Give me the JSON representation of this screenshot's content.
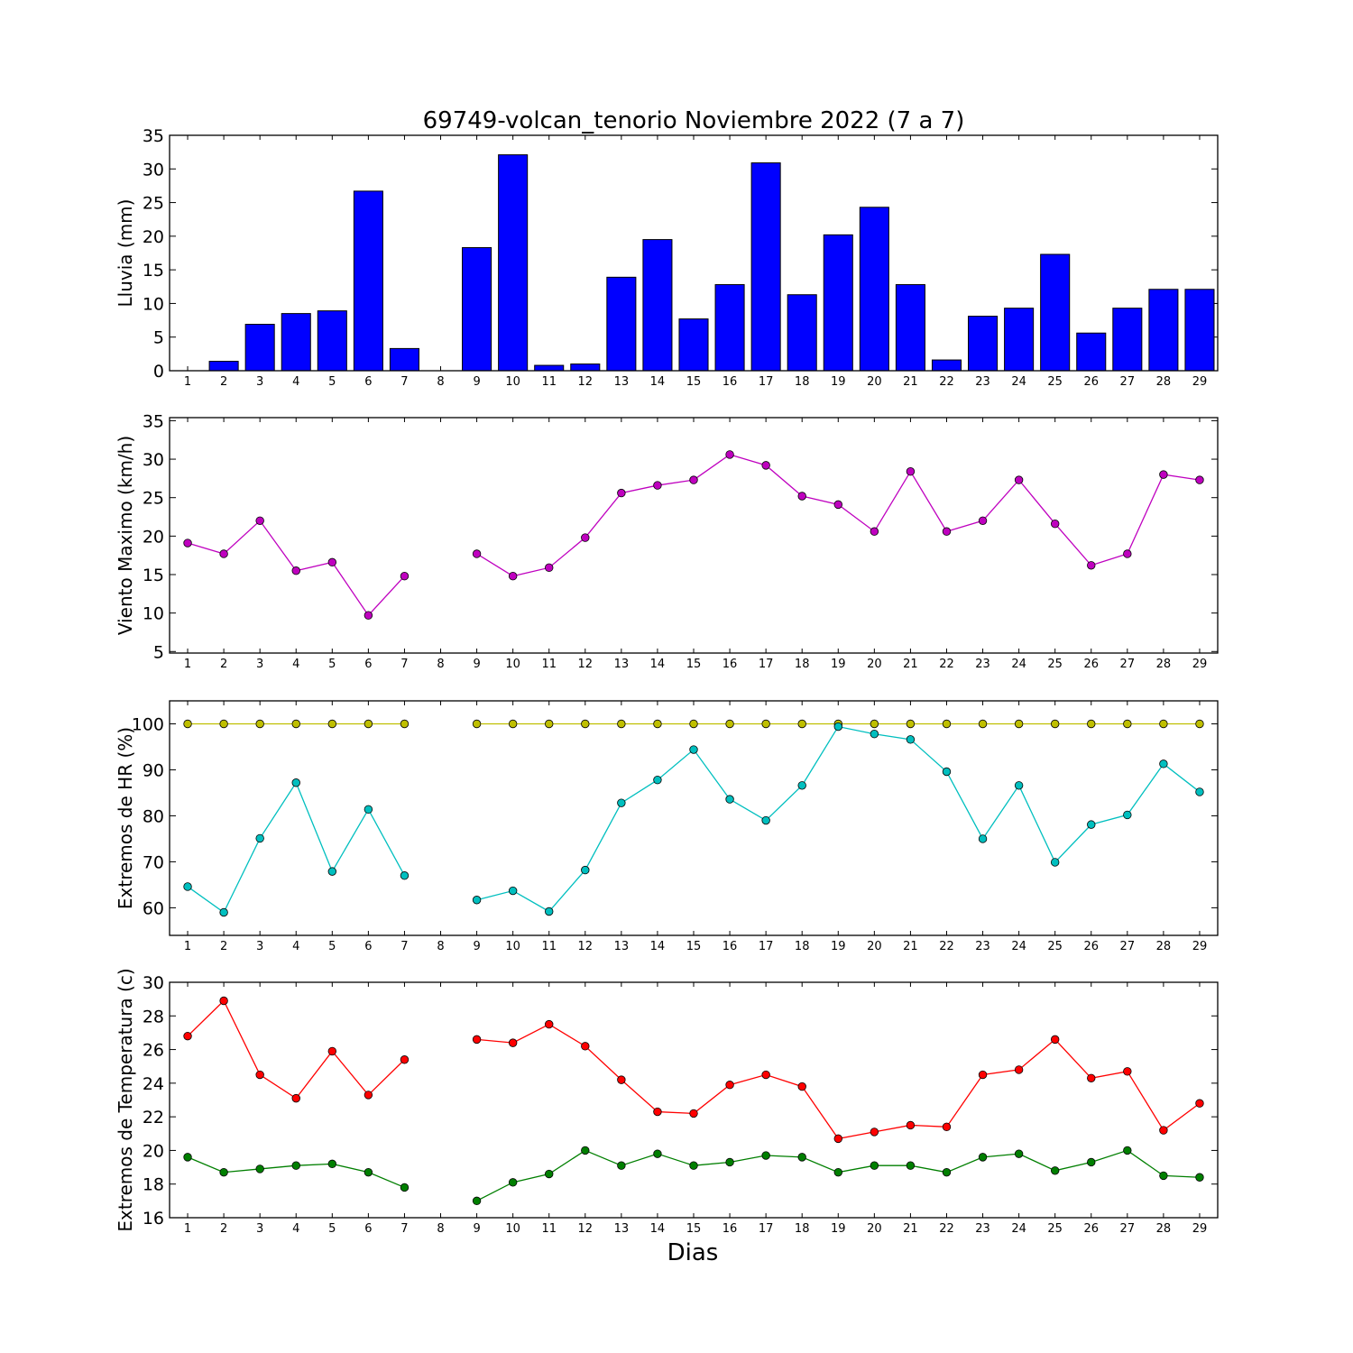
{
  "title": "69749-volcan_tenorio Noviembre 2022  (7 a 7)",
  "xlabel": "Dias",
  "chart_data": [
    {
      "type": "bar",
      "ylabel": "Lluvia (mm)",
      "ylim": [
        0,
        35
      ],
      "yticks": [
        0,
        5,
        10,
        15,
        20,
        25,
        30,
        35
      ],
      "categories": [
        1,
        2,
        3,
        4,
        5,
        6,
        7,
        8,
        9,
        10,
        11,
        12,
        13,
        14,
        15,
        16,
        17,
        18,
        19,
        20,
        21,
        22,
        23,
        24,
        25,
        26,
        27,
        28,
        29
      ],
      "series": [
        {
          "color": "#0000ff",
          "values": [
            0,
            1.4,
            6.9,
            8.5,
            8.9,
            26.7,
            3.3,
            0,
            18.3,
            32.1,
            0.8,
            1.0,
            13.9,
            19.5,
            7.7,
            12.8,
            30.9,
            11.3,
            20.2,
            24.3,
            12.8,
            1.6,
            8.1,
            9.3,
            17.3,
            5.6,
            9.3,
            12.1,
            12.1
          ]
        }
      ]
    },
    {
      "type": "line",
      "ylabel": "Viento Maximo (km/h)",
      "ylim": [
        4.8,
        35.4
      ],
      "yticks": [
        5,
        10,
        15,
        20,
        25,
        30,
        35
      ],
      "categories": [
        1,
        2,
        3,
        4,
        5,
        6,
        7,
        8,
        9,
        10,
        11,
        12,
        13,
        14,
        15,
        16,
        17,
        18,
        19,
        20,
        21,
        22,
        23,
        24,
        25,
        26,
        27,
        28,
        29
      ],
      "series": [
        {
          "color": "#bf00bf",
          "values": [
            19.1,
            17.7,
            22.0,
            15.5,
            16.6,
            9.7,
            14.8,
            null,
            17.7,
            14.8,
            15.9,
            19.8,
            25.6,
            26.6,
            27.3,
            30.6,
            29.2,
            25.2,
            24.1,
            20.6,
            28.4,
            20.6,
            22.0,
            27.3,
            21.6,
            16.2,
            17.7,
            28.0,
            27.3
          ]
        }
      ]
    },
    {
      "type": "line",
      "ylabel": "Extremos de HR (%)",
      "ylim": [
        54,
        105
      ],
      "yticks": [
        60,
        70,
        80,
        90,
        100
      ],
      "categories": [
        1,
        2,
        3,
        4,
        5,
        6,
        7,
        8,
        9,
        10,
        11,
        12,
        13,
        14,
        15,
        16,
        17,
        18,
        19,
        20,
        21,
        22,
        23,
        24,
        25,
        26,
        27,
        28,
        29
      ],
      "series": [
        {
          "color": "#bfbf00",
          "values": [
            100,
            100,
            100,
            100,
            100,
            100,
            100,
            null,
            100,
            100,
            100,
            100,
            100,
            100,
            100,
            100,
            100,
            100,
            100,
            100,
            100,
            100,
            100,
            100,
            100,
            100,
            100,
            100,
            100
          ]
        },
        {
          "color": "#00bfbf",
          "values": [
            64.6,
            59.0,
            75.1,
            87.2,
            67.9,
            81.4,
            67.0,
            null,
            61.7,
            63.7,
            59.2,
            68.2,
            82.8,
            87.8,
            94.4,
            83.6,
            79.0,
            86.6,
            99.4,
            97.8,
            96.6,
            89.6,
            75.0,
            86.6,
            69.9,
            78.1,
            80.2,
            91.3,
            85.2
          ]
        }
      ]
    },
    {
      "type": "line",
      "ylabel": "Extremos de Temperatura (c)",
      "ylim": [
        16,
        30
      ],
      "yticks": [
        16,
        18,
        20,
        22,
        24,
        26,
        28,
        30
      ],
      "categories": [
        1,
        2,
        3,
        4,
        5,
        6,
        7,
        8,
        9,
        10,
        11,
        12,
        13,
        14,
        15,
        16,
        17,
        18,
        19,
        20,
        21,
        22,
        23,
        24,
        25,
        26,
        27,
        28,
        29
      ],
      "series": [
        {
          "color": "#ff0000",
          "values": [
            26.8,
            28.9,
            24.5,
            23.1,
            25.9,
            23.3,
            25.4,
            null,
            26.6,
            26.4,
            27.5,
            26.2,
            24.2,
            22.3,
            22.2,
            23.9,
            24.5,
            23.8,
            20.7,
            21.1,
            21.5,
            21.4,
            24.5,
            24.8,
            26.6,
            24.3,
            24.7,
            21.2,
            22.8
          ]
        },
        {
          "color": "#007f00",
          "values": [
            19.6,
            18.7,
            18.9,
            19.1,
            19.2,
            18.7,
            17.8,
            null,
            17.0,
            18.1,
            18.6,
            20.0,
            19.1,
            19.8,
            19.1,
            19.3,
            19.7,
            19.6,
            18.7,
            19.1,
            19.1,
            18.7,
            19.6,
            19.8,
            18.8,
            19.3,
            20.0,
            18.5,
            18.4
          ]
        }
      ]
    }
  ]
}
